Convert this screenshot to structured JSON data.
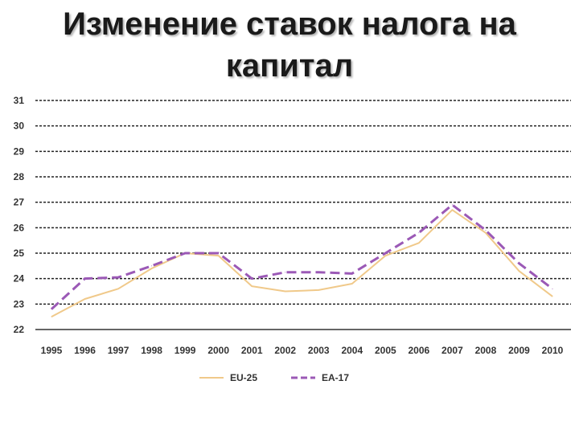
{
  "title_line1": "Изменение ставок налога на",
  "title_line2": "капитал",
  "chart_data": {
    "type": "line",
    "x": [
      "1995",
      "1996",
      "1997",
      "1998",
      "1999",
      "2000",
      "2001",
      "2002",
      "2003",
      "2004",
      "2005",
      "2006",
      "2007",
      "2008",
      "2009",
      "2010"
    ],
    "series": [
      {
        "name": "EU-25",
        "color": "#f0c98a",
        "dash": "solid",
        "values": [
          22.5,
          23.2,
          23.6,
          24.4,
          25.0,
          24.9,
          23.7,
          23.5,
          23.55,
          23.8,
          24.9,
          25.4,
          26.7,
          25.8,
          24.3,
          23.3
        ]
      },
      {
        "name": "EA-17",
        "color": "#9b59b6",
        "dash": "dashed",
        "values": [
          22.8,
          24.0,
          24.05,
          24.5,
          25.0,
          25.0,
          24.0,
          24.25,
          24.25,
          24.2,
          25.0,
          25.8,
          26.9,
          25.9,
          24.6,
          23.6
        ]
      }
    ],
    "y_ticks": [
      "22",
      "23",
      "24",
      "25",
      "26",
      "27",
      "28",
      "29",
      "30",
      "31"
    ],
    "ylim": [
      22,
      31
    ],
    "grid": true,
    "legend_position": "bottom"
  }
}
